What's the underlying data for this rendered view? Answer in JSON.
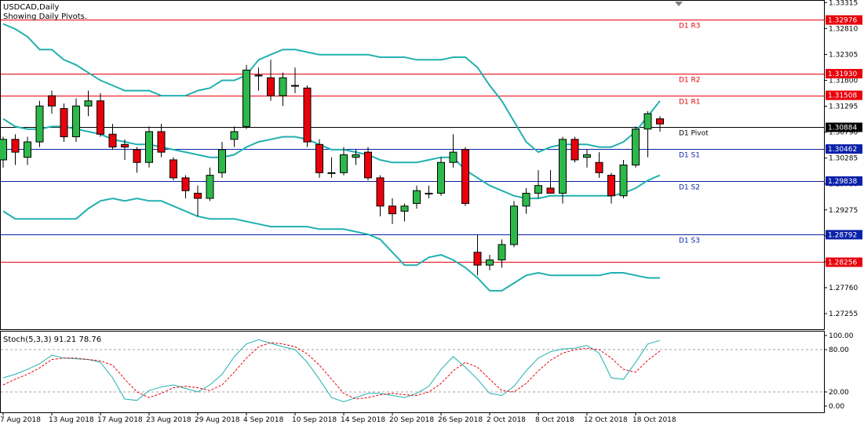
{
  "header": {
    "symbol_label": "USDCAD,Daily",
    "pivots_label": "Showing Daily Pivots."
  },
  "colors": {
    "bull": "#2db84a",
    "bear": "#e8000b",
    "bands": "#22b0b0",
    "stoch_main": "#22b0b0",
    "stoch_signal": "#e8000b",
    "resistance": "#e8000b",
    "support": "#0b21a8",
    "pivot": "#000000"
  },
  "chart_data": [
    {
      "type": "candlestick",
      "title": "USDCAD,Daily",
      "subtitle": "Showing Daily Pivots.",
      "ylim": [
        1.2695,
        1.3335
      ],
      "y_ticks": [
        "1.33315",
        "1.32810",
        "1.32305",
        "1.31800",
        "1.31295",
        "1.30790",
        "1.30285",
        "1.29780",
        "1.29275",
        "1.28770",
        "1.28265",
        "1.27760",
        "1.27255"
      ],
      "x_ticks": [
        {
          "label": "7 Aug 2018",
          "i": 0
        },
        {
          "label": "13 Aug 2018",
          "i": 4
        },
        {
          "label": "17 Aug 2018",
          "i": 8
        },
        {
          "label": "23 Aug 2018",
          "i": 12
        },
        {
          "label": "29 Aug 2018",
          "i": 16
        },
        {
          "label": "4 Sep 2018",
          "i": 20
        },
        {
          "label": "10 Sep 2018",
          "i": 24
        },
        {
          "label": "14 Sep 2018",
          "i": 28
        },
        {
          "label": "20 Sep 2018",
          "i": 32
        },
        {
          "label": "26 Sep 2018",
          "i": 36
        },
        {
          "label": "2 Oct 2018",
          "i": 40
        },
        {
          "label": "8 Oct 2018",
          "i": 44
        },
        {
          "label": "12 Oct 2018",
          "i": 48
        },
        {
          "label": "18 Oct 2018",
          "i": 52
        }
      ],
      "candles": [
        {
          "o": 1.3025,
          "h": 1.307,
          "l": 1.301,
          "c": 1.3065
        },
        {
          "o": 1.3065,
          "h": 1.3075,
          "l": 1.3015,
          "c": 1.304
        },
        {
          "o": 1.303,
          "h": 1.307,
          "l": 1.3015,
          "c": 1.306
        },
        {
          "o": 1.306,
          "h": 1.314,
          "l": 1.305,
          "c": 1.313
        },
        {
          "o": 1.315,
          "h": 1.316,
          "l": 1.3115,
          "c": 1.313
        },
        {
          "o": 1.3125,
          "h": 1.3135,
          "l": 1.306,
          "c": 1.307
        },
        {
          "o": 1.307,
          "h": 1.3145,
          "l": 1.306,
          "c": 1.313
        },
        {
          "o": 1.313,
          "h": 1.316,
          "l": 1.311,
          "c": 1.314
        },
        {
          "o": 1.314,
          "h": 1.3155,
          "l": 1.307,
          "c": 1.3075
        },
        {
          "o": 1.3075,
          "h": 1.3095,
          "l": 1.3045,
          "c": 1.305
        },
        {
          "o": 1.3055,
          "h": 1.3065,
          "l": 1.3025,
          "c": 1.305
        },
        {
          "o": 1.3045,
          "h": 1.305,
          "l": 1.3,
          "c": 1.302
        },
        {
          "o": 1.302,
          "h": 1.309,
          "l": 1.301,
          "c": 1.308
        },
        {
          "o": 1.308,
          "h": 1.3095,
          "l": 1.303,
          "c": 1.304
        },
        {
          "o": 1.3025,
          "h": 1.303,
          "l": 1.2985,
          "c": 1.299
        },
        {
          "o": 1.299,
          "h": 1.2995,
          "l": 1.295,
          "c": 1.2965
        },
        {
          "o": 1.296,
          "h": 1.2975,
          "l": 1.2915,
          "c": 1.295
        },
        {
          "o": 1.295,
          "h": 1.301,
          "l": 1.2945,
          "c": 1.2995
        },
        {
          "o": 1.3,
          "h": 1.306,
          "l": 1.299,
          "c": 1.3045
        },
        {
          "o": 1.3065,
          "h": 1.309,
          "l": 1.305,
          "c": 1.308
        },
        {
          "o": 1.309,
          "h": 1.321,
          "l": 1.3085,
          "c": 1.32
        },
        {
          "o": 1.319,
          "h": 1.3205,
          "l": 1.316,
          "c": 1.319
        },
        {
          "o": 1.3185,
          "h": 1.322,
          "l": 1.314,
          "c": 1.315
        },
        {
          "o": 1.315,
          "h": 1.3195,
          "l": 1.313,
          "c": 1.3185
        },
        {
          "o": 1.317,
          "h": 1.3205,
          "l": 1.3155,
          "c": 1.317
        },
        {
          "o": 1.3165,
          "h": 1.317,
          "l": 1.305,
          "c": 1.306
        },
        {
          "o": 1.3055,
          "h": 1.3065,
          "l": 1.299,
          "c": 1.3
        },
        {
          "o": 1.3,
          "h": 1.303,
          "l": 1.299,
          "c": 1.3
        },
        {
          "o": 1.3,
          "h": 1.305,
          "l": 1.2995,
          "c": 1.3035
        },
        {
          "o": 1.303,
          "h": 1.3045,
          "l": 1.3015,
          "c": 1.3035
        },
        {
          "o": 1.304,
          "h": 1.305,
          "l": 1.2985,
          "c": 1.299
        },
        {
          "o": 1.299,
          "h": 1.2995,
          "l": 1.2915,
          "c": 1.2935
        },
        {
          "o": 1.2935,
          "h": 1.295,
          "l": 1.29,
          "c": 1.292
        },
        {
          "o": 1.2925,
          "h": 1.294,
          "l": 1.2905,
          "c": 1.2935
        },
        {
          "o": 1.294,
          "h": 1.2975,
          "l": 1.293,
          "c": 1.2965
        },
        {
          "o": 1.296,
          "h": 1.2975,
          "l": 1.295,
          "c": 1.296
        },
        {
          "o": 1.296,
          "h": 1.303,
          "l": 1.2955,
          "c": 1.302
        },
        {
          "o": 1.302,
          "h": 1.3075,
          "l": 1.301,
          "c": 1.304
        },
        {
          "o": 1.3045,
          "h": 1.305,
          "l": 1.2935,
          "c": 1.294
        },
        {
          "o": 1.2845,
          "h": 1.288,
          "l": 1.28,
          "c": 1.282
        },
        {
          "o": 1.282,
          "h": 1.284,
          "l": 1.281,
          "c": 1.283
        },
        {
          "o": 1.283,
          "h": 1.287,
          "l": 1.2815,
          "c": 1.286
        },
        {
          "o": 1.286,
          "h": 1.2945,
          "l": 1.2855,
          "c": 1.2935
        },
        {
          "o": 1.2935,
          "h": 1.297,
          "l": 1.292,
          "c": 1.296
        },
        {
          "o": 1.296,
          "h": 1.3005,
          "l": 1.295,
          "c": 1.2975
        },
        {
          "o": 1.297,
          "h": 1.3005,
          "l": 1.296,
          "c": 1.296
        },
        {
          "o": 1.296,
          "h": 1.307,
          "l": 1.294,
          "c": 1.3065
        },
        {
          "o": 1.3065,
          "h": 1.307,
          "l": 1.302,
          "c": 1.3025
        },
        {
          "o": 1.303,
          "h": 1.3045,
          "l": 1.301,
          "c": 1.3035
        },
        {
          "o": 1.302,
          "h": 1.304,
          "l": 1.299,
          "c": 1.3
        },
        {
          "o": 1.2995,
          "h": 1.3,
          "l": 1.294,
          "c": 1.2955
        },
        {
          "o": 1.2955,
          "h": 1.3025,
          "l": 1.295,
          "c": 1.3015
        },
        {
          "o": 1.3015,
          "h": 1.309,
          "l": 1.301,
          "c": 1.3085
        },
        {
          "o": 1.3085,
          "h": 1.312,
          "l": 1.303,
          "c": 1.3115
        },
        {
          "o": 1.3105,
          "h": 1.311,
          "l": 1.308,
          "c": 1.3095
        }
      ],
      "bollinger": {
        "upper": [
          1.329,
          1.328,
          1.3265,
          1.324,
          1.324,
          1.322,
          1.321,
          1.3195,
          1.318,
          1.317,
          1.316,
          1.316,
          1.316,
          1.315,
          1.315,
          1.315,
          1.316,
          1.3165,
          1.318,
          1.318,
          1.319,
          1.322,
          1.323,
          1.324,
          1.324,
          1.3235,
          1.323,
          1.323,
          1.323,
          1.323,
          1.323,
          1.3225,
          1.3225,
          1.3225,
          1.322,
          1.322,
          1.322,
          1.3225,
          1.3225,
          1.3205,
          1.317,
          1.314,
          1.31,
          1.306,
          1.304,
          1.305,
          1.3055,
          1.3055,
          1.3055,
          1.305,
          1.305,
          1.306,
          1.308,
          1.311,
          1.314
        ],
        "middle": [
          1.3105,
          1.309,
          1.3085,
          1.3085,
          1.309,
          1.309,
          1.3085,
          1.308,
          1.3075,
          1.3065,
          1.306,
          1.3055,
          1.3055,
          1.305,
          1.3045,
          1.304,
          1.3035,
          1.303,
          1.303,
          1.3035,
          1.305,
          1.306,
          1.3065,
          1.307,
          1.307,
          1.3065,
          1.3055,
          1.3045,
          1.3045,
          1.304,
          1.3035,
          1.3025,
          1.302,
          1.302,
          1.302,
          1.3025,
          1.303,
          1.303,
          1.3005,
          1.299,
          1.2975,
          1.2965,
          1.2955,
          1.295,
          1.295,
          1.2955,
          1.2955,
          1.2955,
          1.2955,
          1.2955,
          1.2955,
          1.296,
          1.297,
          1.2985,
          1.2995
        ],
        "lower": [
          1.2925,
          1.291,
          1.291,
          1.291,
          1.291,
          1.291,
          1.291,
          1.293,
          1.2945,
          1.295,
          1.2945,
          1.295,
          1.2945,
          1.2945,
          1.2935,
          1.2925,
          1.2915,
          1.291,
          1.291,
          1.291,
          1.2905,
          1.29,
          1.2895,
          1.2895,
          1.2895,
          1.2895,
          1.289,
          1.289,
          1.289,
          1.2885,
          1.288,
          1.287,
          1.2845,
          1.282,
          1.282,
          1.2835,
          1.284,
          1.283,
          1.2815,
          1.2795,
          1.277,
          1.277,
          1.2785,
          1.28,
          1.2805,
          1.28,
          1.28,
          1.28,
          1.28,
          1.28,
          1.2805,
          1.2805,
          1.28,
          1.2795,
          1.2795
        ]
      },
      "pivots": [
        {
          "label": "D1 R3",
          "value": 1.32976,
          "tag": "1.32976",
          "kind": "resistance"
        },
        {
          "label": "D1 R2",
          "value": 1.3193,
          "tag": "1.31930",
          "kind": "resistance"
        },
        {
          "label": "D1 R1",
          "value": 1.31508,
          "tag": "1.31508",
          "kind": "resistance"
        },
        {
          "label": "D1 Pivot",
          "value": 1.30884,
          "tag": "1.30884",
          "kind": "pivot"
        },
        {
          "label": "D1 S1",
          "value": 1.30462,
          "tag": "1.30462",
          "kind": "support"
        },
        {
          "label": "D1 S2",
          "value": 1.29838,
          "tag": "1.29838",
          "kind": "support"
        },
        {
          "label": "D1 S3",
          "value": 1.28792,
          "tag": "1.28792",
          "kind": "support"
        },
        {
          "label": "",
          "value": 1.28256,
          "tag": "1.28256",
          "kind": "resistance"
        }
      ]
    },
    {
      "type": "line",
      "title": "Stoch(5,3,3) 91.21 78.76",
      "ylim": [
        0,
        100
      ],
      "y_ticks": [
        "100.00",
        "80.00",
        "20.00",
        "0.00"
      ],
      "levels": [
        80,
        20
      ],
      "series": [
        {
          "values": [
            40,
            45,
            52,
            60,
            72,
            68,
            67,
            66,
            62,
            40,
            10,
            8,
            22,
            27,
            30,
            25,
            20,
            30,
            45,
            70,
            88,
            94,
            89,
            84,
            80,
            62,
            38,
            12,
            6,
            12,
            18,
            18,
            15,
            12,
            18,
            28,
            52,
            70,
            55,
            38,
            18,
            15,
            28,
            50,
            68,
            77,
            81,
            82,
            86,
            75,
            40,
            38,
            62,
            88,
            93
          ]
        },
        {
          "values": [
            30,
            38,
            45,
            54,
            66,
            68,
            68,
            66,
            64,
            58,
            38,
            20,
            12,
            18,
            26,
            28,
            26,
            22,
            30,
            48,
            68,
            84,
            90,
            88,
            84,
            74,
            58,
            38,
            18,
            10,
            12,
            16,
            18,
            16,
            15,
            20,
            32,
            50,
            62,
            55,
            38,
            22,
            20,
            32,
            50,
            65,
            75,
            80,
            82,
            80,
            68,
            52,
            48,
            65,
            78
          ]
        }
      ]
    }
  ]
}
